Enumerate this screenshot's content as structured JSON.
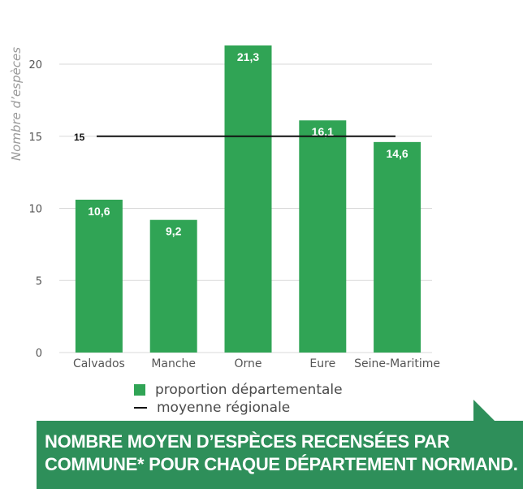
{
  "chart_data": {
    "type": "bar",
    "categories": [
      "Calvados",
      "Manche",
      "Orne",
      "Eure",
      "Seine-Maritime"
    ],
    "series": [
      {
        "name": "proportion départementale",
        "values": [
          10.6,
          9.2,
          21.3,
          16.1,
          14.6
        ]
      }
    ],
    "value_labels": [
      "10,6",
      "9,2",
      "21,3",
      "16,1",
      "14,6"
    ],
    "reference_line": {
      "name": "moyenne régionale",
      "value": 15,
      "label": "15"
    },
    "ylabel": "Nombre d’espèces",
    "xlabel": "",
    "ylim": [
      0,
      20
    ],
    "yticks": [
      0,
      5,
      10,
      15,
      20
    ],
    "ytick_labels": [
      "0",
      "5",
      "10",
      "15",
      "20"
    ],
    "grid": true,
    "legend_position": "bottom"
  },
  "legend": {
    "bar_label": "proportion départementale",
    "line_label": "moyenne régionale"
  },
  "caption": {
    "text": "Nombre moyen d’espèces recensées par commune* pour chaque département normand."
  },
  "colors": {
    "bar": "#30a455",
    "line": "#111111",
    "grid": "#d9d9d9",
    "caption_bg": "#2e8f5a",
    "axis_text": "#555555"
  }
}
